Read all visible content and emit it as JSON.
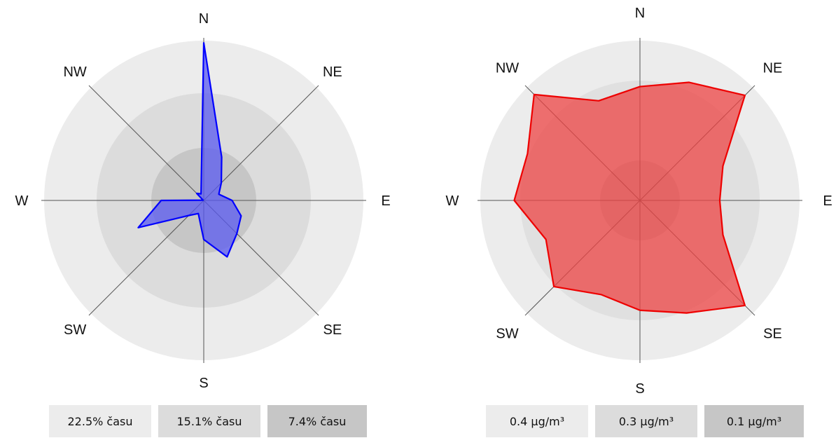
{
  "chart_data": [
    {
      "type": "radar",
      "directions": [
        "N",
        "NE",
        "E",
        "SE",
        "S",
        "SW",
        "W",
        "NW"
      ],
      "angles_deg": [
        0,
        22.5,
        45,
        67.5,
        90,
        112.5,
        135,
        157.5,
        180,
        202.5,
        225,
        247.5,
        270,
        292.5,
        315,
        337.5
      ],
      "series": [
        {
          "values": [
            22.2,
            6.6,
            3.5,
            2.3,
            4.0,
            5.7,
            6.6,
            8.6,
            5.5,
            2.0,
            3.0,
            10.0,
            6.0,
            0.1,
            1.4,
            1.0
          ]
        }
      ],
      "rings": [
        22.5,
        15.1,
        7.4
      ],
      "ring_colors": [
        "#ececec",
        "#dcdcdc",
        "#c6c6c6"
      ],
      "fill_color": "#5a5af0",
      "line_color": "#0000ff",
      "legend": [
        "22.5% času",
        "15.1% času",
        "7.4% času"
      ]
    },
    {
      "type": "radar",
      "directions": [
        "N",
        "NE",
        "E",
        "SE",
        "S",
        "SW",
        "W",
        "NW"
      ],
      "angles_deg": [
        0,
        22.5,
        45,
        67.5,
        90,
        112.5,
        135,
        157.5,
        180,
        202.5,
        225,
        247.5,
        270,
        292.5,
        315,
        337.5
      ],
      "series": [
        {
          "values": [
            0.285,
            0.32,
            0.372,
            0.225,
            0.2,
            0.225,
            0.372,
            0.305,
            0.275,
            0.255,
            0.305,
            0.255,
            0.315,
            0.305,
            0.375,
            0.27
          ]
        }
      ],
      "rings": [
        0.4,
        0.3,
        0.1
      ],
      "ring_colors": [
        "#ececec",
        "#e0e0e0",
        "#c6c6c6"
      ],
      "fill_color": "#ee4444",
      "line_color": "#ee0000",
      "legend": [
        "0.4 µg/m³",
        "0.3 µg/m³",
        "0.1 µg/m³"
      ]
    }
  ]
}
